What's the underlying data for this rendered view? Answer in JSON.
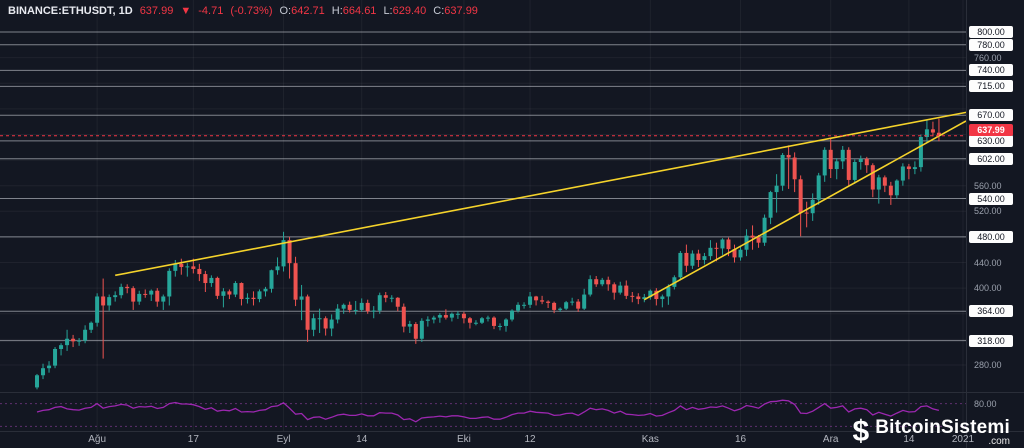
{
  "header": {
    "symbol": "BINANCE:ETHUSDT, 1D",
    "last_price": "637.99",
    "arrow": "▼",
    "change": "-4.71",
    "change_pct": "(-0.73%)",
    "ohlc": [
      {
        "label": "O:",
        "value": "642.71"
      },
      {
        "label": "H:",
        "value": "664.61"
      },
      {
        "label": "L:",
        "value": "629.40"
      },
      {
        "label": "C:",
        "value": "637.99"
      }
    ]
  },
  "logo": {
    "icon": "$",
    "name": "BitcoinSistemi",
    "tld": ".com"
  },
  "chart_data": {
    "type": "candlestick",
    "exchange": "BINANCE",
    "symbol": "ETHUSDT",
    "interval": "1D",
    "colors": {
      "background": "#131722",
      "up": "#26a69a",
      "down": "#ef5350",
      "grid": "rgba(255,255,255,0.05)",
      "level_line": "rgba(216,220,228,0.55)",
      "trendline": "#f5d32b",
      "last_price_line": "#f23645"
    },
    "price_axis": {
      "tick_labels": [
        {
          "text": "760.00",
          "price": 760
        },
        {
          "text": "560.00",
          "price": 560
        },
        {
          "text": "520.00",
          "price": 520
        },
        {
          "text": "440.00",
          "price": 440
        },
        {
          "text": "400.00",
          "price": 400
        },
        {
          "text": "280.00",
          "price": 280
        }
      ],
      "level_lines": [
        {
          "text": "800.00",
          "price": 800
        },
        {
          "text": "780.00",
          "price": 780
        },
        {
          "text": "740.00",
          "price": 740
        },
        {
          "text": "715.00",
          "price": 715
        },
        {
          "text": "670.00",
          "price": 670
        },
        {
          "text": "630.00",
          "price": 630
        },
        {
          "text": "602.00",
          "price": 602
        },
        {
          "text": "540.00",
          "price": 540
        },
        {
          "text": "480.00",
          "price": 480
        },
        {
          "text": "364.00",
          "price": 364
        },
        {
          "text": "318.00",
          "price": 318
        }
      ],
      "last_price_label": {
        "text": "637.99",
        "price": 637.99
      }
    },
    "time_axis": {
      "labels": [
        {
          "text": "Ağu",
          "i": 10
        },
        {
          "text": "17",
          "i": 26
        },
        {
          "text": "Eyl",
          "i": 41
        },
        {
          "text": "14",
          "i": 54
        },
        {
          "text": "Eki",
          "i": 71
        },
        {
          "text": "12",
          "i": 82
        },
        {
          "text": "Kas",
          "i": 102
        },
        {
          "text": "16",
          "i": 117
        },
        {
          "text": "Ara",
          "i": 132
        },
        {
          "text": "14",
          "i": 145
        },
        {
          "text": "2021",
          "i": 154
        }
      ]
    },
    "trendlines": [
      {
        "name": "upper",
        "i1": 13,
        "p1": 420,
        "i2": 152,
        "p2": 670
      },
      {
        "name": "lower",
        "i1": 101,
        "p1": 382,
        "i2": 152,
        "p2": 648
      }
    ],
    "candles": [
      [
        245,
        266,
        242,
        264
      ],
      [
        264,
        282,
        258,
        275
      ],
      [
        275,
        286,
        268,
        279
      ],
      [
        279,
        308,
        275,
        305
      ],
      [
        305,
        314,
        295,
        311
      ],
      [
        311,
        335,
        302,
        321
      ],
      [
        321,
        327,
        308,
        317
      ],
      [
        317,
        322,
        310,
        318
      ],
      [
        318,
        342,
        314,
        335
      ],
      [
        335,
        348,
        330,
        346
      ],
      [
        346,
        392,
        340,
        387
      ],
      [
        387,
        415,
        290,
        373
      ],
      [
        373,
        390,
        365,
        386
      ],
      [
        386,
        395,
        379,
        389
      ],
      [
        389,
        407,
        384,
        402
      ],
      [
        402,
        406,
        392,
        400
      ],
      [
        400,
        403,
        366,
        379
      ],
      [
        379,
        396,
        374,
        391
      ],
      [
        391,
        398,
        385,
        390
      ],
      [
        390,
        398,
        380,
        396
      ],
      [
        396,
        400,
        371,
        379
      ],
      [
        379,
        390,
        366,
        387
      ],
      [
        387,
        431,
        373,
        427
      ],
      [
        427,
        444,
        418,
        438
      ],
      [
        438,
        446,
        421,
        433
      ],
      [
        433,
        439,
        418,
        434
      ],
      [
        434,
        446,
        423,
        430
      ],
      [
        430,
        438,
        411,
        422
      ],
      [
        422,
        427,
        394,
        408
      ],
      [
        408,
        420,
        402,
        416
      ],
      [
        416,
        418,
        383,
        388
      ],
      [
        388,
        400,
        370,
        395
      ],
      [
        395,
        398,
        383,
        390
      ],
      [
        390,
        411,
        386,
        408
      ],
      [
        408,
        409,
        373,
        383
      ],
      [
        383,
        392,
        376,
        385
      ],
      [
        385,
        395,
        373,
        383
      ],
      [
        383,
        398,
        378,
        395
      ],
      [
        395,
        402,
        387,
        399
      ],
      [
        399,
        429,
        393,
        428
      ],
      [
        428,
        448,
        421,
        434
      ],
      [
        434,
        488,
        426,
        475
      ],
      [
        475,
        480,
        415,
        439
      ],
      [
        439,
        449,
        372,
        382
      ],
      [
        382,
        405,
        350,
        387
      ],
      [
        387,
        390,
        316,
        335
      ],
      [
        335,
        360,
        325,
        353
      ],
      [
        353,
        368,
        330,
        353
      ],
      [
        353,
        356,
        326,
        337
      ],
      [
        337,
        359,
        325,
        351
      ],
      [
        351,
        375,
        345,
        368
      ],
      [
        368,
        376,
        360,
        374
      ],
      [
        374,
        379,
        362,
        366
      ],
      [
        366,
        380,
        359,
        366
      ],
      [
        366,
        384,
        363,
        377
      ],
      [
        377,
        382,
        360,
        364
      ],
      [
        364,
        372,
        353,
        365
      ],
      [
        365,
        393,
        360,
        389
      ],
      [
        389,
        394,
        378,
        385
      ],
      [
        385,
        389,
        378,
        385
      ],
      [
        385,
        386,
        364,
        371
      ],
      [
        371,
        376,
        331,
        340
      ],
      [
        340,
        349,
        330,
        344
      ],
      [
        344,
        347,
        313,
        321
      ],
      [
        321,
        353,
        316,
        349
      ],
      [
        349,
        356,
        340,
        351
      ],
      [
        351,
        357,
        345,
        354
      ],
      [
        354,
        361,
        346,
        358
      ],
      [
        358,
        367,
        351,
        354
      ],
      [
        354,
        362,
        348,
        360
      ],
      [
        360,
        364,
        352,
        360
      ],
      [
        360,
        363,
        345,
        353
      ],
      [
        353,
        355,
        337,
        346
      ],
      [
        346,
        350,
        342,
        346
      ],
      [
        346,
        355,
        344,
        353
      ],
      [
        353,
        357,
        348,
        354
      ],
      [
        354,
        356,
        336,
        341
      ],
      [
        341,
        345,
        334,
        341
      ],
      [
        341,
        353,
        332,
        351
      ],
      [
        351,
        367,
        348,
        365
      ],
      [
        365,
        378,
        362,
        374
      ],
      [
        374,
        378,
        368,
        374
      ],
      [
        374,
        394,
        369,
        387
      ],
      [
        387,
        388,
        373,
        381
      ],
      [
        381,
        388,
        375,
        379
      ],
      [
        379,
        381,
        369,
        377
      ],
      [
        377,
        379,
        361,
        366
      ],
      [
        366,
        370,
        363,
        368
      ],
      [
        368,
        380,
        366,
        378
      ],
      [
        378,
        385,
        373,
        379
      ],
      [
        379,
        383,
        363,
        368
      ],
      [
        368,
        399,
        366,
        390
      ],
      [
        390,
        420,
        387,
        414
      ],
      [
        414,
        419,
        402,
        406
      ],
      [
        406,
        416,
        403,
        413
      ],
      [
        413,
        418,
        396,
        406
      ],
      [
        406,
        409,
        382,
        393
      ],
      [
        393,
        410,
        390,
        404
      ],
      [
        404,
        412,
        383,
        388
      ],
      [
        388,
        394,
        378,
        387
      ],
      [
        387,
        392,
        375,
        383
      ],
      [
        383,
        391,
        378,
        386
      ],
      [
        386,
        398,
        382,
        396
      ],
      [
        396,
        400,
        373,
        383
      ],
      [
        383,
        390,
        370,
        387
      ],
      [
        387,
        406,
        374,
        402
      ],
      [
        402,
        420,
        398,
        417
      ],
      [
        417,
        458,
        412,
        455
      ],
      [
        455,
        468,
        425,
        435
      ],
      [
        435,
        459,
        430,
        454
      ],
      [
        454,
        460,
        433,
        444
      ],
      [
        444,
        455,
        437,
        450
      ],
      [
        450,
        475,
        444,
        463
      ],
      [
        463,
        471,
        442,
        462
      ],
      [
        462,
        478,
        452,
        476
      ],
      [
        476,
        479,
        450,
        461
      ],
      [
        461,
        468,
        440,
        448
      ],
      [
        448,
        465,
        443,
        460
      ],
      [
        460,
        492,
        450,
        482
      ],
      [
        482,
        498,
        460,
        479
      ],
      [
        479,
        483,
        463,
        471
      ],
      [
        471,
        515,
        466,
        510
      ],
      [
        510,
        552,
        500,
        550
      ],
      [
        550,
        578,
        518,
        560
      ],
      [
        560,
        611,
        552,
        608
      ],
      [
        608,
        623,
        555,
        604
      ],
      [
        604,
        612,
        550,
        570
      ],
      [
        570,
        576,
        481,
        518
      ],
      [
        518,
        535,
        495,
        517
      ],
      [
        517,
        548,
        505,
        538
      ],
      [
        538,
        580,
        530,
        576
      ],
      [
        576,
        620,
        566,
        616
      ],
      [
        616,
        635,
        572,
        586
      ],
      [
        586,
        603,
        570,
        598
      ],
      [
        598,
        622,
        586,
        616
      ],
      [
        616,
        620,
        560,
        569
      ],
      [
        569,
        601,
        563,
        597
      ],
      [
        597,
        607,
        585,
        602
      ],
      [
        602,
        605,
        580,
        592
      ],
      [
        592,
        595,
        542,
        554
      ],
      [
        554,
        577,
        532,
        573
      ],
      [
        573,
        576,
        550,
        560
      ],
      [
        560,
        566,
        530,
        545
      ],
      [
        545,
        570,
        540,
        568
      ],
      [
        568,
        595,
        560,
        590
      ],
      [
        590,
        594,
        570,
        586
      ],
      [
        586,
        598,
        578,
        589
      ],
      [
        589,
        640,
        582,
        636
      ],
      [
        636,
        662,
        628,
        648
      ],
      [
        648,
        660,
        637,
        643
      ],
      [
        642.71,
        664.61,
        629.4,
        637.99
      ]
    ],
    "oscillator": {
      "color": "#9c27b0",
      "band_levels": [
        80,
        20
      ],
      "band_label": "80.00",
      "values": [
        58,
        62,
        64,
        70,
        72,
        66,
        64,
        63,
        68,
        70,
        80,
        68,
        72,
        74,
        78,
        76,
        68,
        72,
        71,
        73,
        67,
        70,
        80,
        83,
        79,
        79,
        77,
        72,
        65,
        69,
        60,
        63,
        61,
        67,
        58,
        59,
        58,
        62,
        64,
        72,
        74,
        82,
        68,
        52,
        54,
        38,
        44,
        45,
        39,
        44,
        50,
        52,
        49,
        49,
        53,
        48,
        48,
        56,
        55,
        55,
        50,
        38,
        40,
        32,
        42,
        44,
        45,
        47,
        45,
        48,
        48,
        45,
        41,
        41,
        44,
        45,
        39,
        39,
        44,
        51,
        55,
        55,
        60,
        57,
        56,
        55,
        49,
        50,
        54,
        55,
        49,
        58,
        68,
        64,
        66,
        62,
        55,
        60,
        52,
        51,
        49,
        50,
        54,
        47,
        49,
        56,
        62,
        74,
        64,
        70,
        65,
        67,
        71,
        70,
        74,
        68,
        61,
        66,
        75,
        72,
        68,
        79,
        85,
        86,
        89,
        87,
        78,
        55,
        54,
        60,
        70,
        80,
        68,
        70,
        74,
        58,
        66,
        68,
        64,
        50,
        57,
        52,
        47,
        55,
        62,
        58,
        59,
        72,
        74,
        66,
        62
      ]
    }
  }
}
